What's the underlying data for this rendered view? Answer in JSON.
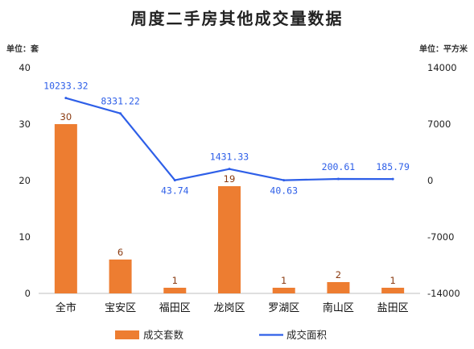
{
  "chart_data": {
    "type": "bar",
    "title": "周度二手房其他成交量数据",
    "left_unit_label": "单位：套",
    "right_unit_label": "单位：平方米",
    "categories": [
      "全市",
      "宝安区",
      "福田区",
      "龙岗区",
      "罗湖区",
      "南山区",
      "盐田区"
    ],
    "series": [
      {
        "name": "成交套数",
        "type": "bar",
        "axis": "left",
        "color": "#ed7d31",
        "values": [
          30,
          6,
          1,
          19,
          1,
          2,
          1
        ],
        "labels": [
          "30",
          "6",
          "1",
          "19",
          "1",
          "2",
          "1"
        ]
      },
      {
        "name": "成交面积",
        "type": "line",
        "axis": "right",
        "color": "#2e5fe8",
        "values": [
          10233.32,
          8331.22,
          43.74,
          1431.33,
          40.63,
          200.61,
          185.79
        ],
        "labels": [
          "10233.32",
          "8331.22",
          "43.74",
          "1431.33",
          "40.63",
          "200.61",
          "185.79"
        ]
      }
    ],
    "y_left": {
      "min": 0,
      "max": 40,
      "ticks": [
        "0",
        "10",
        "20",
        "30",
        "40"
      ]
    },
    "y_right": {
      "min": -14000,
      "max": 14000,
      "ticks": [
        "-14000",
        "-7000",
        "0",
        "7000",
        "14000"
      ]
    },
    "legend_position": "bottom",
    "grid": false
  }
}
